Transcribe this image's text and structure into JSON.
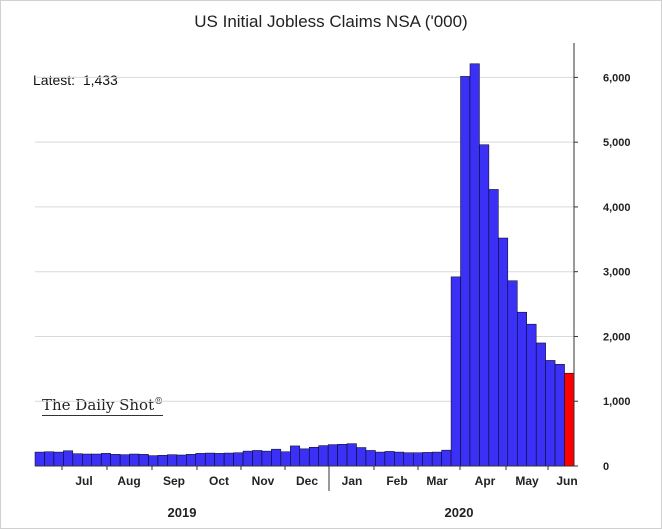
{
  "chart_data": {
    "type": "bar",
    "title": "US Initial Jobless Claims NSA ('000)",
    "annotation": {
      "label": "Latest:",
      "value": "1,433"
    },
    "brand": "The Daily Shot",
    "brand_mark": "®",
    "ylim": [
      0,
      6500
    ],
    "yticks": [
      "0",
      "1,000",
      "2,000",
      "3,000",
      "4,000",
      "5,000",
      "6,000"
    ],
    "ytick_values": [
      0,
      1000,
      2000,
      3000,
      4000,
      5000,
      6000
    ],
    "month_labels": [
      "Jul",
      "Aug",
      "Sep",
      "Oct",
      "Nov",
      "Dec",
      "Jan",
      "Feb",
      "Mar",
      "Apr",
      "May",
      "Jun"
    ],
    "year_labels": [
      "2019",
      "2020"
    ],
    "colors": {
      "bar": "#3b30f5",
      "latest": "#ff0000",
      "grid": "#d9d9d9"
    },
    "values": [
      215,
      220,
      215,
      235,
      190,
      185,
      185,
      195,
      180,
      175,
      185,
      180,
      160,
      165,
      175,
      170,
      180,
      195,
      200,
      195,
      200,
      205,
      230,
      240,
      230,
      260,
      220,
      310,
      265,
      290,
      315,
      330,
      335,
      345,
      285,
      240,
      215,
      225,
      215,
      205,
      205,
      210,
      215,
      245,
      2920,
      6015,
      6210,
      4960,
      4270,
      3520,
      2860,
      2375,
      2190,
      1900,
      1630,
      1570,
      1433
    ]
  }
}
